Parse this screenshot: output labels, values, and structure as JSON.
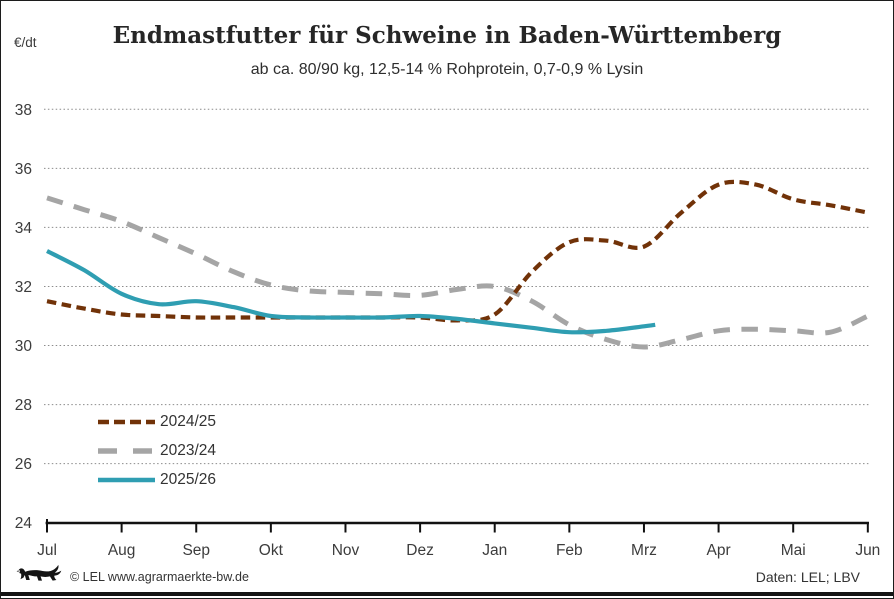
{
  "header": {
    "unit": "€/dt",
    "title": "Endmastfutter für Schweine in Baden-Württemberg",
    "subtitle": "ab ca. 80/90 kg, 12,5-14 % Rohprotein, 0,7-0,9 % Lysin"
  },
  "footer": {
    "logo": "baden-wuerttemberg-lion",
    "copyright": "© LEL www.agrarmaerkte-bw.de",
    "source": "Daten: LEL; LBV"
  },
  "chart_data": {
    "type": "line",
    "title": "Endmastfutter für Schweine in Baden-Württemberg",
    "subtitle": "ab ca. 80/90 kg, 12,5-14 % Rohprotein, 0,7-0,9 % Lysin",
    "ylabel": "€/dt",
    "xlabel": "",
    "ylim": [
      24,
      38
    ],
    "ytick_step": 2,
    "grid": "horizontal-dotted",
    "grid_color": "#8c8c8c",
    "axis_color": "#111111",
    "tick_label_color": "#3c3c3c",
    "legend_position": "lower-left-inside",
    "categories": [
      "Jul",
      "Aug",
      "Sep",
      "Okt",
      "Nov",
      "Dez",
      "Jan",
      "Feb",
      "Mrz",
      "Apr",
      "Mai",
      "Jun"
    ],
    "x_unit": "Monat (Wirtschaftsjahr Jul-Jun), Werte in Monatsbruchteilen",
    "series": [
      {
        "name": "2024/25",
        "color": "#713208",
        "line_style": "dashed-short",
        "x": [
          0,
          0.5,
          1,
          1.5,
          2,
          2.5,
          3,
          3.5,
          4,
          4.5,
          5,
          5.5,
          6,
          6.5,
          7,
          7.5,
          8,
          8.5,
          9,
          9.5,
          10,
          10.5,
          11
        ],
        "values": [
          31.5,
          31.25,
          31.05,
          31.0,
          30.95,
          30.95,
          30.95,
          30.95,
          30.95,
          30.95,
          30.95,
          30.85,
          31.05,
          32.5,
          33.5,
          33.55,
          33.35,
          34.5,
          35.45,
          35.45,
          34.95,
          34.75,
          34.5
        ]
      },
      {
        "name": "2023/24",
        "color": "#A5A5A5",
        "line_style": "dashed-long",
        "x": [
          0,
          0.5,
          1,
          1.5,
          2,
          2.5,
          3,
          3.5,
          4,
          4.5,
          5,
          5.5,
          6,
          6.5,
          7,
          7.5,
          8,
          8.5,
          9,
          9.5,
          10,
          10.5,
          11
        ],
        "values": [
          35.0,
          34.6,
          34.2,
          33.65,
          33.1,
          32.5,
          32.05,
          31.85,
          31.8,
          31.75,
          31.7,
          31.9,
          32.0,
          31.5,
          30.7,
          30.2,
          29.95,
          30.2,
          30.5,
          30.55,
          30.5,
          30.45,
          31.0
        ]
      },
      {
        "name": "2025/26",
        "color": "#2F9EB2",
        "line_style": "solid",
        "x": [
          0,
          0.5,
          1,
          1.5,
          2,
          2.5,
          3,
          3.5,
          4,
          4.5,
          5,
          5.5,
          6,
          6.5,
          7,
          7.5,
          8,
          8.15
        ],
        "values": [
          33.2,
          32.55,
          31.75,
          31.4,
          31.5,
          31.3,
          31.0,
          30.95,
          30.95,
          30.95,
          31.0,
          30.9,
          30.75,
          30.6,
          30.45,
          30.5,
          30.65,
          30.7
        ]
      }
    ]
  }
}
